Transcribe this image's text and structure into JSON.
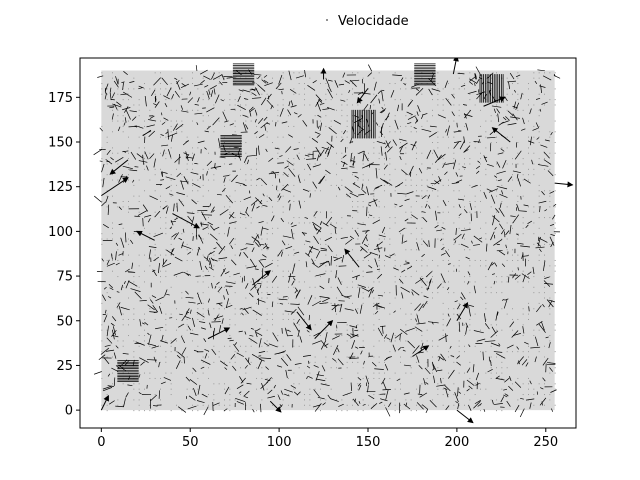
{
  "chart_data": {
    "type": "quiver",
    "title": "",
    "xlabel": "",
    "ylabel": "",
    "xlim": [
      -12,
      267
    ],
    "ylim": [
      -10,
      197
    ],
    "grid_extent": {
      "x": [
        0,
        255
      ],
      "y": [
        0,
        190
      ]
    },
    "x_ticks": [
      0,
      50,
      100,
      150,
      200,
      250
    ],
    "y_ticks": [
      0,
      25,
      50,
      75,
      100,
      125,
      150,
      175
    ],
    "x_tick_labels": [
      "0",
      "50",
      "100",
      "150",
      "200",
      "250"
    ],
    "y_tick_labels": [
      "0",
      "25",
      "50",
      "75",
      "100",
      "125",
      "150",
      "175"
    ],
    "grid": false,
    "legend": {
      "position": "top-center",
      "entries": [
        "Velocidade"
      ]
    },
    "series": [
      {
        "name": "Velocidade",
        "color": "#000000",
        "note_vectors": "dense displacement field; large vectors listed",
        "vectors": [
          {
            "x": 0,
            "y": 120,
            "u": 15,
            "v": 10
          },
          {
            "x": 255,
            "y": 127,
            "u": 10,
            "v": -1
          },
          {
            "x": 200,
            "y": 0,
            "u": 9,
            "v": -7
          },
          {
            "x": 198,
            "y": 188,
            "u": 2,
            "v": 10
          },
          {
            "x": 125,
            "y": 185,
            "u": 0,
            "v": 6
          },
          {
            "x": 0,
            "y": 0,
            "u": 4,
            "v": 8
          },
          {
            "x": 15,
            "y": 140,
            "u": -10,
            "v": -8
          },
          {
            "x": 40,
            "y": 110,
            "u": 15,
            "v": -8
          },
          {
            "x": 60,
            "y": 40,
            "u": 12,
            "v": 6
          },
          {
            "x": 85,
            "y": 70,
            "u": 10,
            "v": 8
          },
          {
            "x": 110,
            "y": 55,
            "u": 8,
            "v": -10
          },
          {
            "x": 120,
            "y": 40,
            "u": 10,
            "v": 10
          },
          {
            "x": 150,
            "y": 180,
            "u": -6,
            "v": -8
          },
          {
            "x": 175,
            "y": 30,
            "u": 9,
            "v": 6
          },
          {
            "x": 215,
            "y": 170,
            "u": 12,
            "v": 5
          },
          {
            "x": 230,
            "y": 150,
            "u": -10,
            "v": 8
          },
          {
            "x": 95,
            "y": 5,
            "u": 6,
            "v": -6
          },
          {
            "x": 145,
            "y": 80,
            "u": -8,
            "v": 10
          },
          {
            "x": 200,
            "y": 50,
            "u": 6,
            "v": 10
          },
          {
            "x": 30,
            "y": 95,
            "u": -10,
            "v": 5
          }
        ],
        "clusters": [
          {
            "x": 15,
            "y": 22,
            "type": "horizontal"
          },
          {
            "x": 73,
            "y": 148,
            "type": "horizontal"
          },
          {
            "x": 220,
            "y": 180,
            "type": "vertical"
          },
          {
            "x": 148,
            "y": 160,
            "type": "vertical"
          },
          {
            "x": 182,
            "y": 188,
            "type": "horizontal"
          },
          {
            "x": 80,
            "y": 188,
            "type": "horizontal"
          }
        ]
      }
    ]
  },
  "legend": {
    "label": "Velocidade"
  }
}
